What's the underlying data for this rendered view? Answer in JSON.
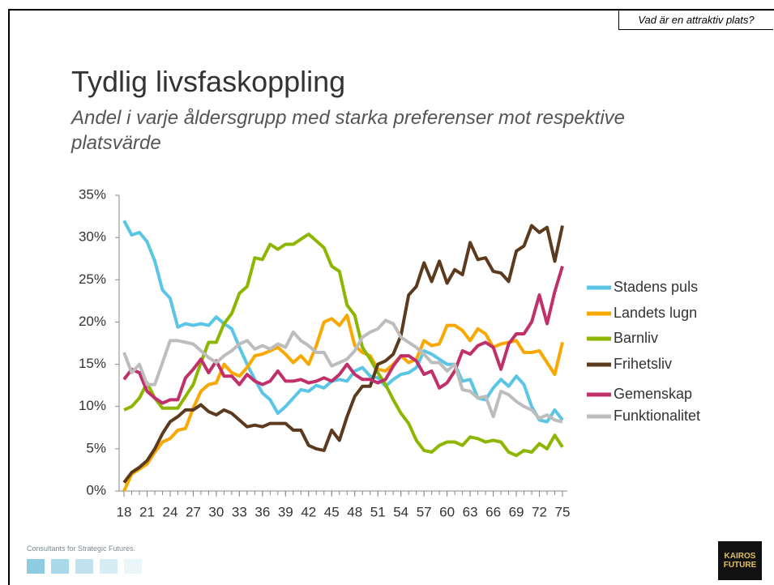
{
  "header": {
    "tag": "Vad är en attraktiv plats?",
    "title": "Tydlig livsfaskoppling",
    "subtitle": "Andel i varje åldersgrupp med starka preferenser mot respektive platsvärde"
  },
  "footer": {
    "tagline": "Consultants for Strategic Futures.",
    "logo": [
      "KAIROS",
      "FUTURE"
    ]
  },
  "chart_data": {
    "type": "line",
    "x": [
      18,
      19,
      20,
      21,
      22,
      23,
      24,
      25,
      26,
      27,
      28,
      29,
      30,
      31,
      32,
      33,
      34,
      35,
      36,
      37,
      38,
      39,
      40,
      41,
      42,
      43,
      44,
      45,
      46,
      47,
      48,
      49,
      50,
      51,
      52,
      53,
      54,
      55,
      56,
      57,
      58,
      59,
      60,
      61,
      62,
      63,
      64,
      65,
      66,
      67,
      68,
      69,
      70,
      71,
      72,
      73,
      74,
      75
    ],
    "xlim": [
      18,
      75
    ],
    "xticks": [
      18,
      21,
      24,
      27,
      30,
      33,
      36,
      39,
      42,
      45,
      48,
      51,
      54,
      57,
      60,
      63,
      66,
      69,
      72,
      75
    ],
    "ylim": [
      0,
      35
    ],
    "yticks": [
      {
        "value": 0,
        "label": "0%"
      },
      {
        "value": 5,
        "label": "5%"
      },
      {
        "value": 10,
        "label": "10%"
      },
      {
        "value": 15,
        "label": "15%"
      },
      {
        "value": 20,
        "label": "20%"
      },
      {
        "value": 25,
        "label": "25%"
      },
      {
        "value": 30,
        "label": "30%"
      },
      {
        "value": 35,
        "label": "35%"
      }
    ],
    "legend": "right",
    "series": [
      {
        "name": "Stadens puls",
        "color": "#5bc5e6",
        "values": [
          32,
          30.3,
          30.6,
          29.5,
          27.2,
          23.8,
          22.8,
          19.4,
          19.8,
          19.6,
          19.8,
          19.6,
          20.6,
          19.8,
          19.2,
          17,
          15,
          13.2,
          11.6,
          10.8,
          9.2,
          10,
          11,
          12,
          11.8,
          12.5,
          12.2,
          13,
          13.2,
          13,
          14.2,
          14.6,
          13.6,
          13.4,
          12.4,
          13.2,
          13.8,
          14,
          14.6,
          16.6,
          16.2,
          15.6,
          15,
          15,
          13,
          13.2,
          11,
          10.8,
          12.2,
          13.2,
          12.4,
          13.6,
          12.6,
          10,
          8.4,
          8.2,
          9.6,
          8.4
        ]
      },
      {
        "name": "Landets lugn",
        "color": "#f8a800",
        "values": [
          0,
          2,
          2.6,
          3.2,
          4.6,
          5.8,
          6.2,
          7.2,
          7.4,
          9.8,
          11.8,
          12.6,
          12.8,
          15,
          14,
          13.6,
          14.6,
          16,
          16.2,
          16.6,
          17,
          16.2,
          15.2,
          16,
          15,
          17.2,
          20,
          20.4,
          19.6,
          20.8,
          17.2,
          16.4,
          16,
          14.4,
          14.2,
          15,
          16,
          15.2,
          15.6,
          17.8,
          17.2,
          17.4,
          19.6,
          19.6,
          19,
          17.8,
          19.2,
          18.6,
          17,
          17.4,
          17.6,
          17.8,
          16.4,
          16.4,
          16.6,
          15.2,
          13.8,
          17.6
        ]
      },
      {
        "name": "Barnliv",
        "color": "#8db600",
        "values": [
          9.6,
          10,
          11,
          12.8,
          11,
          9.8,
          9.8,
          9.8,
          11.2,
          12.6,
          15.2,
          17.6,
          17.6,
          19.8,
          21,
          23.4,
          24.2,
          27.6,
          27.4,
          29.2,
          28.6,
          29.2,
          29.2,
          29.8,
          30.4,
          29.6,
          28.8,
          26.6,
          26,
          22,
          20.8,
          17,
          15.6,
          14,
          12.6,
          10.8,
          9.2,
          8,
          6,
          4.8,
          4.6,
          5.4,
          5.8,
          5.8,
          5.4,
          6.4,
          6.2,
          5.8,
          6,
          5.8,
          4.6,
          4.2,
          4.8,
          4.6,
          5.6,
          5,
          6.6,
          5.2
        ]
      },
      {
        "name": "Frihetsliv",
        "color": "#5c3a1e",
        "values": [
          1,
          2.2,
          2.8,
          3.6,
          5,
          6.8,
          8.2,
          8.8,
          9.6,
          9.6,
          10.2,
          9.4,
          9,
          9.6,
          9.2,
          8.4,
          7.6,
          7.8,
          7.6,
          8,
          8,
          8,
          7.2,
          7.2,
          5.4,
          5,
          4.8,
          7.2,
          6,
          8.8,
          11.2,
          12.4,
          12.4,
          15,
          15.4,
          16.2,
          18.4,
          23.2,
          24.2,
          27,
          24.8,
          27.2,
          24.6,
          26.2,
          25.6,
          29.4,
          27.4,
          27.6,
          26,
          25.8,
          24.8,
          28.4,
          29,
          31.4,
          30.6,
          31.2,
          27.2,
          31.4
        ]
      },
      {
        "name": "Gemenskap",
        "color": "#c0306a",
        "values": [
          13.2,
          14.4,
          14,
          11.8,
          11,
          10.4,
          10.8,
          10.8,
          13.4,
          14.4,
          15.6,
          14,
          15.4,
          13.6,
          13.6,
          12.6,
          13.8,
          13,
          12.6,
          13,
          14.2,
          13,
          13,
          13.2,
          12.8,
          13,
          13.4,
          13,
          13.8,
          15,
          13.8,
          13.2,
          13.2,
          12.8,
          13.2,
          14.8,
          16,
          16,
          15.4,
          13.8,
          14.2,
          12.2,
          12.8,
          14.2,
          16.6,
          16.2,
          17.2,
          17.6,
          17,
          14.4,
          17.4,
          18.6,
          18.6,
          20,
          23.2,
          19.8,
          23.6,
          26.6
        ]
      },
      {
        "name": "Funktionalitet",
        "color": "#bdbdbd",
        "values": [
          16.4,
          14,
          15,
          12.6,
          12.6,
          15.2,
          17.8,
          17.8,
          17.6,
          17.4,
          16.6,
          15.8,
          15.2,
          16,
          16.6,
          17.4,
          17.8,
          16.8,
          17.2,
          16.8,
          17.4,
          17,
          18.8,
          17.8,
          17.2,
          16.4,
          16.4,
          14.8,
          15.2,
          15.6,
          16.6,
          18.2,
          18.8,
          19.2,
          20.2,
          19.8,
          18.2,
          17.6,
          17,
          16.2,
          15.2,
          15.2,
          14.2,
          15,
          12,
          11.8,
          11,
          11.2,
          8.8,
          11.8,
          11.4,
          10.6,
          10,
          9.6,
          8.6,
          9,
          8.4,
          8.2
        ]
      }
    ]
  }
}
